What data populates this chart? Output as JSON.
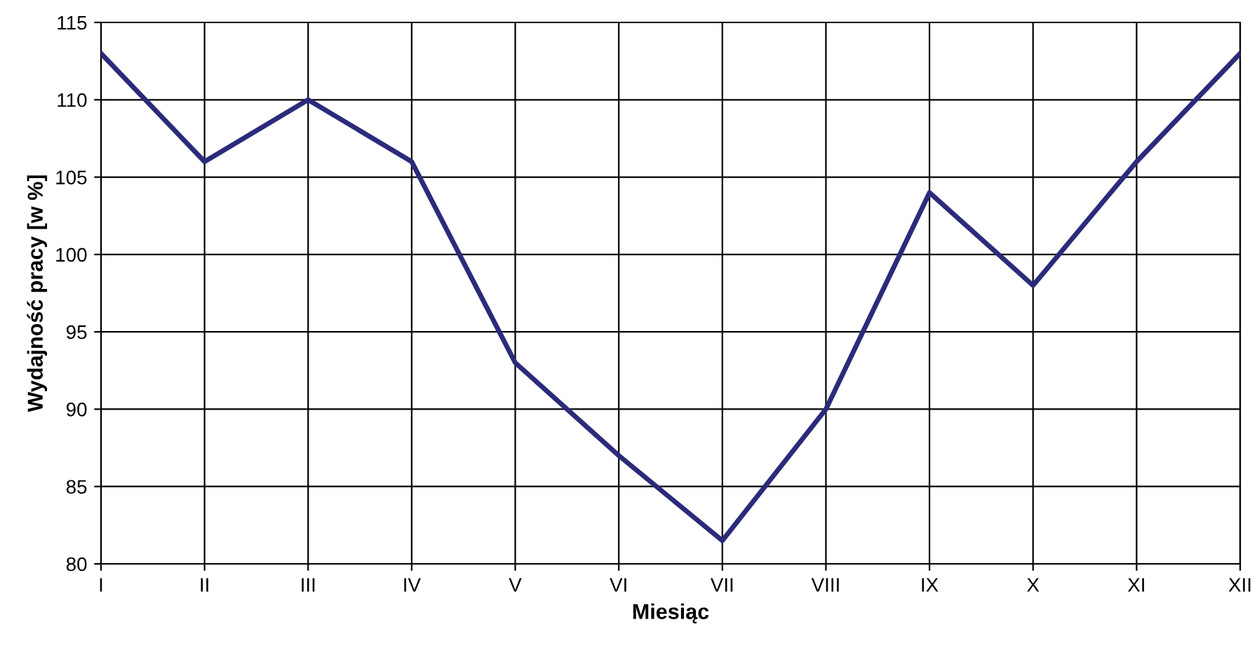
{
  "chart_data": {
    "type": "line",
    "xlabel": "Miesiąc",
    "ylabel": "Wydajność pracy [w %]",
    "categories": [
      "I",
      "II",
      "III",
      "IV",
      "V",
      "VI",
      "VII",
      "VIII",
      "IX",
      "X",
      "XI",
      "XII"
    ],
    "series": [
      {
        "color": "#2b2b7b",
        "values": [
          113,
          106,
          110,
          106,
          93,
          87,
          81.5,
          90,
          104,
          98,
          106,
          113
        ]
      }
    ],
    "ylim": [
      80,
      115
    ],
    "yticks": [
      80,
      85,
      90,
      95,
      100,
      105,
      110,
      115
    ],
    "grid": true,
    "marker": "none",
    "line_style": "solid"
  }
}
